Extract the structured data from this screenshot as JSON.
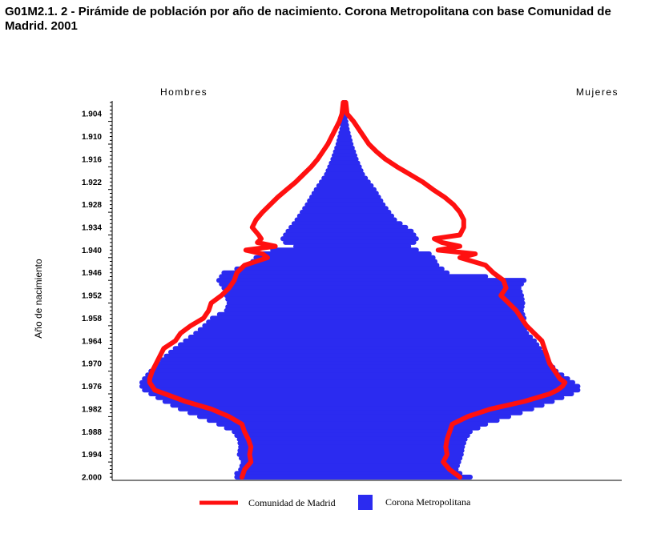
{
  "title": "G01M2.1. 2 - Pirámide de población por año de nacimiento. Corona Metropolitana con base Comunidad de Madrid. 2001",
  "colors": {
    "corona": "#2b2bf0",
    "comunidad": "#ff1010",
    "axis": "#000000"
  },
  "chart_data": {
    "type": "population-pyramid",
    "left_label": "Hombres",
    "right_label": "Mujeres",
    "ylabel": "Año de nacimiento",
    "ylim": [
      1901,
      2000
    ],
    "xlim": [
      -100,
      100
    ],
    "y_ticks": [
      "1.904",
      "1.910",
      "1.916",
      "1.922",
      "1.928",
      "1.934",
      "1.940",
      "1.946",
      "1.952",
      "1.958",
      "1.964",
      "1.970",
      "1.976",
      "1.982",
      "1.988",
      "1.994",
      "2.000"
    ],
    "legend": [
      {
        "label": "Comunidad  de Madrid",
        "color": "#ff1010",
        "kind": "line"
      },
      {
        "label": "Corona Metropolitana",
        "color": "#2b2bf0",
        "kind": "square"
      }
    ],
    "series": [
      {
        "name": "Corona Metropolitana",
        "style": "bar",
        "years": [
          1901,
          1904,
          1908,
          1912,
          1916,
          1920,
          1924,
          1928,
          1932,
          1935,
          1937,
          1938,
          1939,
          1940,
          1941,
          1942,
          1944,
          1946,
          1948,
          1950,
          1952,
          1954,
          1956,
          1958,
          1960,
          1962,
          1964,
          1966,
          1968,
          1970,
          1972,
          1974,
          1975,
          1976,
          1977,
          1978,
          1980,
          1982,
          1984,
          1986,
          1988,
          1990,
          1992,
          1994,
          1996,
          1998,
          1999,
          2000
        ],
        "men": [
          0.5,
          1,
          2,
          3.5,
          5.5,
          8,
          12,
          15.5,
          19.5,
          23,
          25,
          24,
          20,
          29,
          33,
          35.5,
          38,
          48,
          50,
          48,
          47,
          46,
          47,
          52.5,
          55.5,
          59,
          63,
          67,
          70.5,
          73.5,
          76.5,
          79,
          80,
          80,
          79,
          76.5,
          71,
          65,
          57.5,
          50,
          44,
          42,
          41.5,
          42,
          40.5,
          41.5,
          43,
          43
        ],
        "women": [
          0.5,
          1,
          2,
          3.5,
          5.5,
          8,
          12.5,
          16,
          20.5,
          27,
          29,
          28,
          26,
          29,
          34,
          35.5,
          37,
          41,
          71,
          69,
          70,
          70.5,
          70,
          71,
          70.5,
          72,
          75,
          77,
          79,
          81,
          83.5,
          88,
          90,
          92,
          92,
          89.5,
          82,
          74,
          65,
          56,
          50,
          48,
          47,
          46.5,
          45.5,
          44.5,
          46,
          50
        ]
      },
      {
        "name": "Comunidad  de Madrid",
        "style": "line",
        "years": [
          1901,
          1904,
          1906,
          1908,
          1910,
          1912,
          1914,
          1916,
          1918,
          1920,
          1922,
          1924,
          1926,
          1928,
          1930,
          1932,
          1934,
          1936,
          1937,
          1938,
          1939,
          1940,
          1941,
          1942,
          1944,
          1946,
          1948,
          1950,
          1952,
          1954,
          1956,
          1958,
          1960,
          1962,
          1964,
          1966,
          1968,
          1970,
          1972,
          1974,
          1975,
          1976,
          1977,
          1978,
          1980,
          1982,
          1984,
          1986,
          1988,
          1990,
          1992,
          1994,
          1996,
          1998,
          2000
        ],
        "men": [
          0.5,
          1,
          2,
          3.5,
          5,
          6.5,
          8.5,
          10.5,
          13,
          16,
          19,
          22.5,
          26,
          29,
          32,
          34.5,
          36,
          33.5,
          32.5,
          34,
          27,
          38.5,
          32,
          30,
          39,
          42,
          43,
          45,
          48,
          52,
          53,
          55,
          60,
          64,
          66,
          70.5,
          72,
          73.5,
          75,
          76,
          76,
          75,
          74,
          70,
          62,
          52,
          45,
          40,
          39,
          37.5,
          36.5,
          37,
          36.5,
          39,
          40
        ],
        "women": [
          0.5,
          1,
          3.5,
          5.5,
          7.5,
          9.5,
          12.5,
          16,
          20.5,
          25.5,
          30.5,
          34.5,
          39,
          42.5,
          45,
          46.5,
          46.5,
          45,
          35,
          38,
          45,
          36.5,
          51,
          45,
          55,
          58,
          62,
          63,
          61,
          64,
          67,
          69,
          71,
          74,
          77,
          78,
          79,
          80,
          82,
          84,
          86,
          85,
          83,
          80,
          70,
          57,
          48,
          42,
          41,
          40,
          39.5,
          40,
          38.5,
          41,
          45
        ]
      }
    ]
  }
}
